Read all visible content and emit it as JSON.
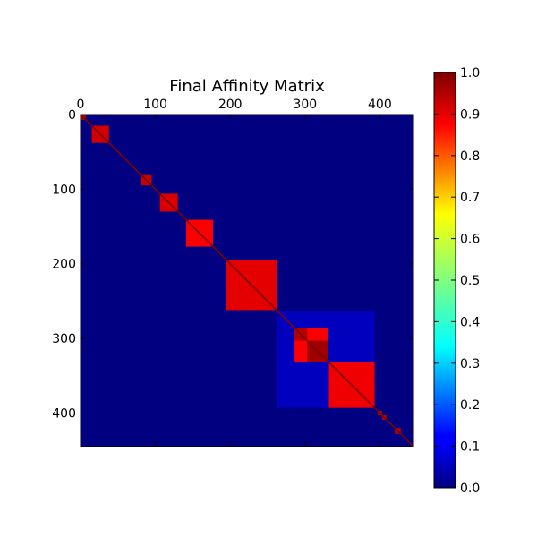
{
  "chart_data": {
    "type": "heatmap",
    "title": "Final Affinity Matrix",
    "matrix_size": 445,
    "x_ticks": [
      0,
      100,
      200,
      300,
      400
    ],
    "y_ticks": [
      0,
      100,
      200,
      300,
      400
    ],
    "xlim": [
      0,
      445
    ],
    "ylim": [
      445,
      0
    ],
    "x_axis_position": "top",
    "background_value": 0.0,
    "colormap": "jet",
    "colorbar": {
      "ticks": [
        "0.0",
        "0.1",
        "0.2",
        "0.3",
        "0.4",
        "0.5",
        "0.6",
        "0.7",
        "0.8",
        "0.9",
        "1.0"
      ],
      "range": [
        0,
        1
      ]
    },
    "blocks": [
      {
        "start": 0,
        "end": 7,
        "value": 0.95
      },
      {
        "start": 15,
        "end": 38,
        "value": 0.92
      },
      {
        "start": 80,
        "end": 95,
        "value": 0.93
      },
      {
        "start": 106,
        "end": 130,
        "value": 0.91
      },
      {
        "start": 141,
        "end": 177,
        "value": 0.88
      },
      {
        "start": 195,
        "end": 262,
        "value": 0.9
      },
      {
        "start": 263,
        "end": 393,
        "value": 0.06
      },
      {
        "start": 286,
        "end": 331,
        "value": 0.88
      },
      {
        "start": 286,
        "end": 303,
        "value": 0.95
      },
      {
        "start": 303,
        "end": 331,
        "value": 0.97
      },
      {
        "start": 332,
        "end": 393,
        "value": 0.89
      },
      {
        "start": 397,
        "end": 403,
        "value": 0.95
      },
      {
        "start": 403,
        "end": 409,
        "value": 0.95
      },
      {
        "start": 420,
        "end": 428,
        "value": 0.95
      }
    ],
    "diagonal_value": 1.0,
    "grid": false
  }
}
